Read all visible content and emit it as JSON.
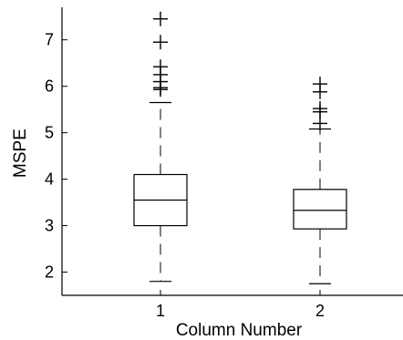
{
  "chart_data": {
    "type": "box",
    "xlabel": "Column Number",
    "ylabel": "MSPE",
    "ylim": [
      1.5,
      7.7
    ],
    "yticks": [
      2,
      3,
      4,
      5,
      6,
      7
    ],
    "grid": false,
    "categories": [
      "1",
      "2"
    ],
    "boxes": [
      {
        "category": "1",
        "whisker_low": 1.8,
        "q1": 3.0,
        "median": 3.55,
        "q3": 4.1,
        "whisker_high": 5.65,
        "outliers": [
          5.93,
          5.97,
          6.1,
          6.25,
          6.42,
          6.95,
          7.45
        ]
      },
      {
        "category": "2",
        "whisker_low": 1.75,
        "q1": 2.93,
        "median": 3.33,
        "q3": 3.78,
        "whisker_high": 5.08,
        "outliers": [
          5.2,
          5.45,
          5.52,
          5.88,
          6.05
        ]
      }
    ]
  }
}
